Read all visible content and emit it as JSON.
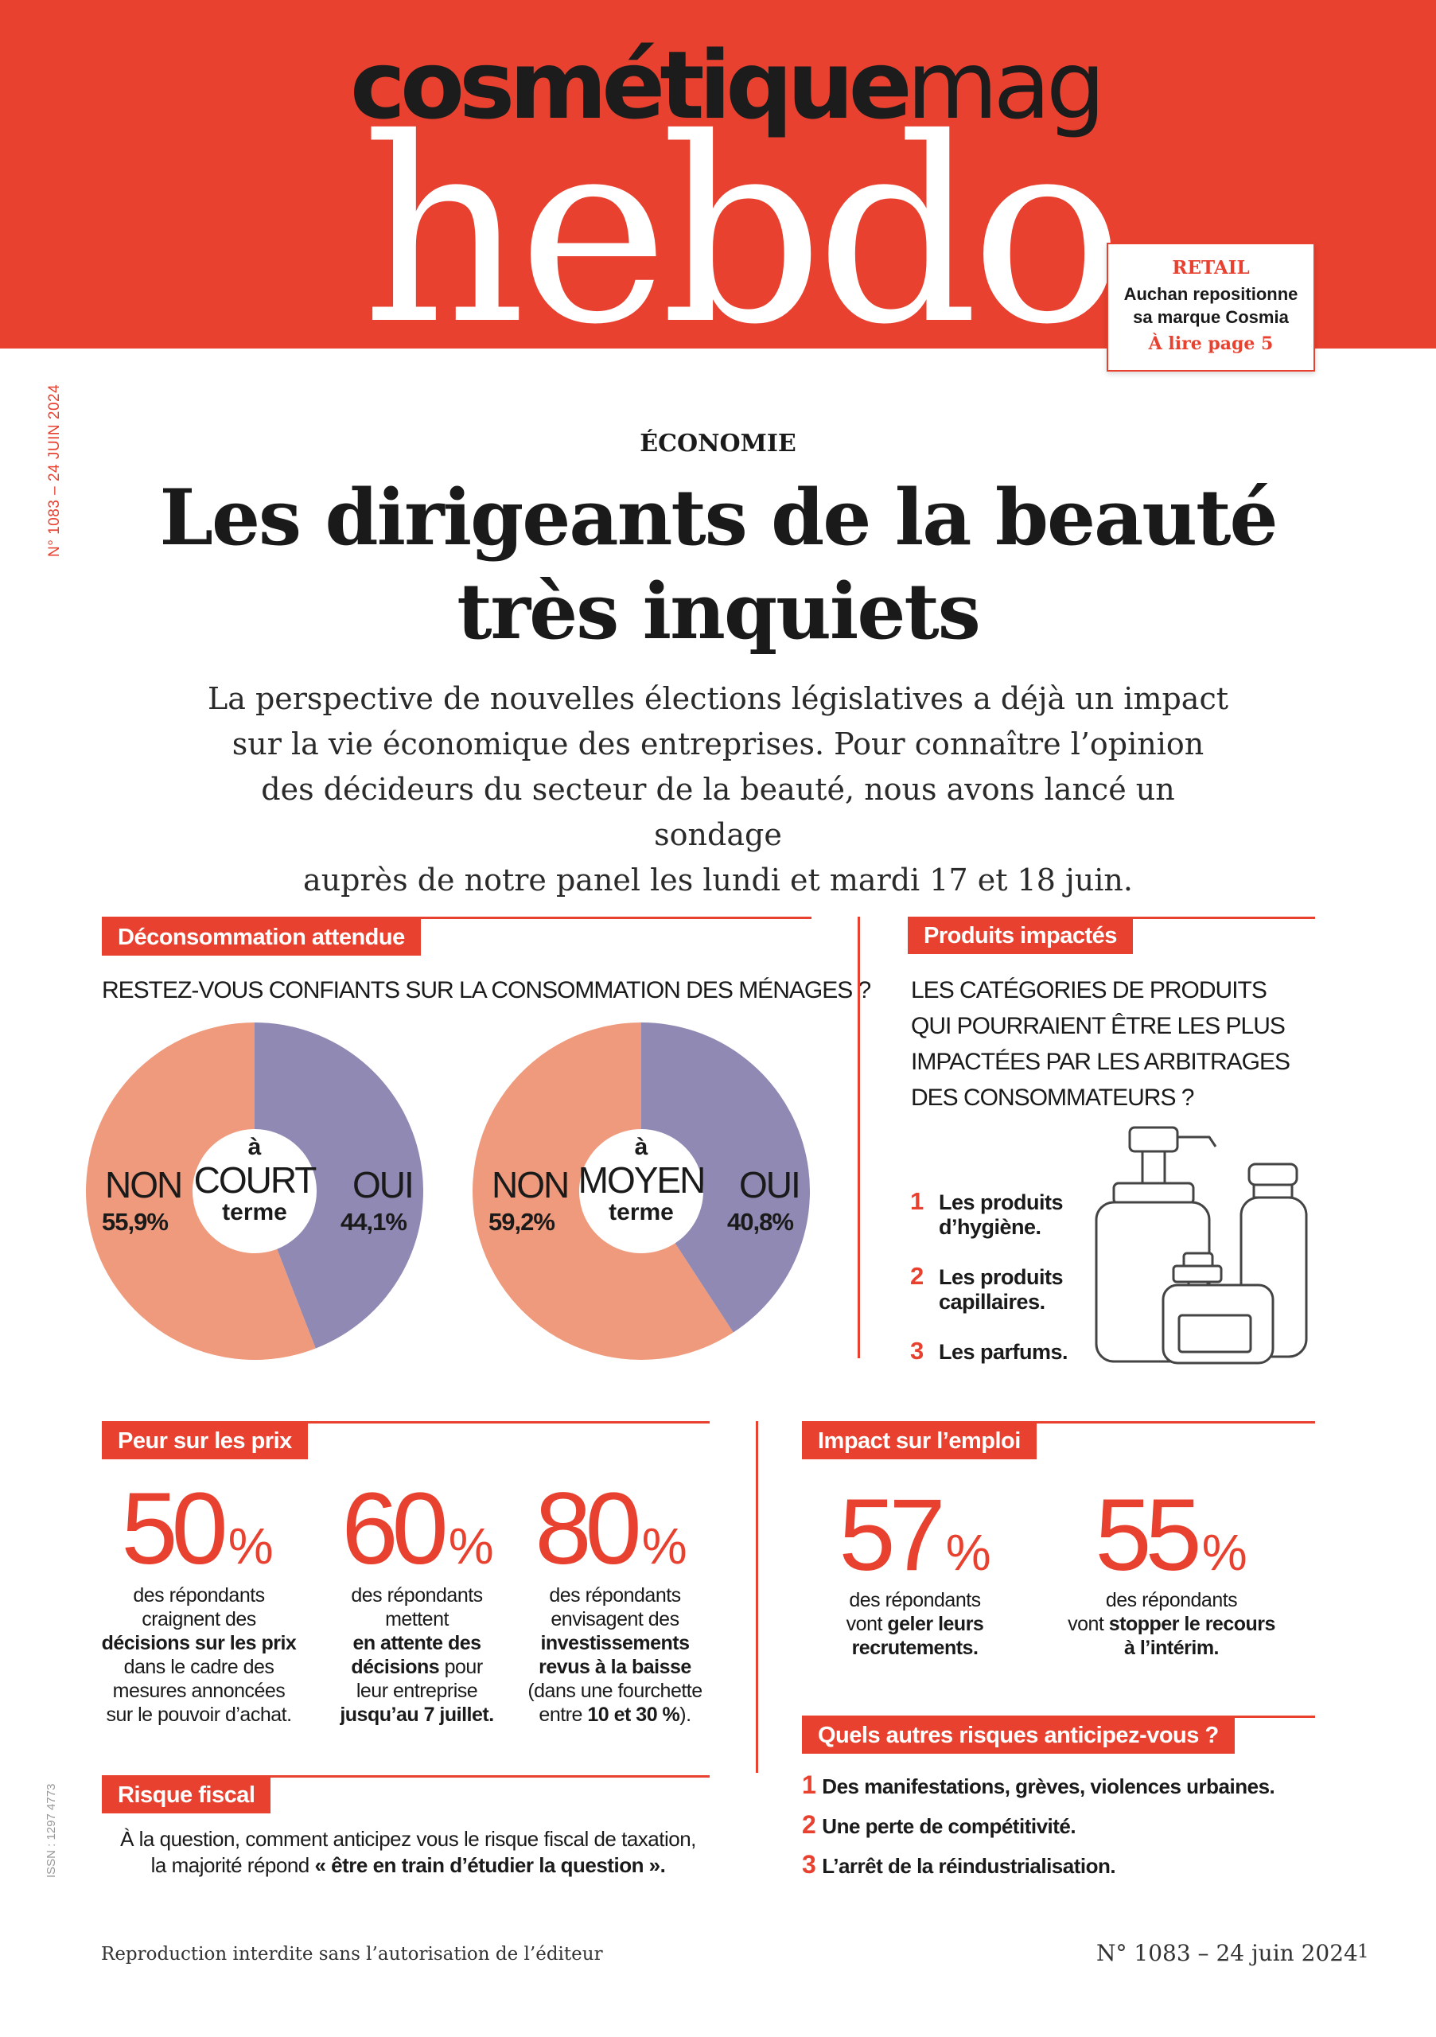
{
  "masthead": {
    "brand_bold": "cosmétique",
    "brand_light": "mag",
    "title": "hebdo"
  },
  "teaser": {
    "rubric": "RETAIL",
    "text_line1": "Auchan repositionne",
    "text_line2": "sa marque Cosmia",
    "link": "À lire page 5"
  },
  "side_note": "N° 1083 – 24 JUIN 2024",
  "issn": "ISSN : 1297 4773",
  "article": {
    "rubric": "ÉCONOMIE",
    "headline_line1": "Les dirigeants de la beauté",
    "headline_line2": "très inquiets",
    "chapo_line1": "La perspective de nouvelles élections législatives a déjà un impact",
    "chapo_line2": "sur la vie économique des entreprises. Pour connaître l’opinion",
    "chapo_line3": "des décideurs du secteur de la beauté, nous avons lancé un sondage",
    "chapo_line4": "auprès de notre panel les lundi et mardi 17 et 18 juin."
  },
  "deconsommation": {
    "label": "Déconsommation attendue",
    "question": "RESTEZ-VOUS CONFIANTS SUR LA CONSOMMATION DES MÉNAGES ?",
    "donuts": [
      {
        "a": "à",
        "horizon": "COURT",
        "term": "terme",
        "non_label": "NON",
        "non_value": "55,9%",
        "oui_label": "OUI",
        "oui_value": "44,1%",
        "non_pct": 55.9,
        "oui_pct": 44.1
      },
      {
        "a": "à",
        "horizon": "MOYEN",
        "term": "terme",
        "non_label": "NON",
        "non_value": "59,2%",
        "oui_label": "OUI",
        "oui_value": "40,8%",
        "non_pct": 59.2,
        "oui_pct": 40.8
      }
    ],
    "colors": {
      "non": "#ef9a7c",
      "oui": "#8f89b3"
    }
  },
  "produits": {
    "label": "Produits impactés",
    "question_line1": "LES CATÉGORIES DE PRODUITS",
    "question_line2": "QUI POURRAIENT ÊTRE LES PLUS",
    "question_line3": "IMPACTÉES PAR LES ARBITRAGES",
    "question_line4": "DES CONSOMMATEURS ?",
    "items": [
      {
        "num": "1",
        "line1": "Les produits",
        "line2": "d’hygiène."
      },
      {
        "num": "2",
        "line1": "Les produits",
        "line2": "capillaires."
      },
      {
        "num": "3",
        "line1": "Les parfums.",
        "line2": ""
      }
    ]
  },
  "prix": {
    "label": "Peur sur les prix",
    "stats": [
      {
        "value": "50",
        "unit": "%",
        "t1": "des répondants",
        "t2": "craignent des",
        "t3": "décisions sur les prix",
        "t4": "dans le cadre des",
        "t5": "mesures annoncées",
        "t6": "sur le pouvoir d’achat."
      },
      {
        "value": "60",
        "unit": "%",
        "t1": "des répondants",
        "t2": "mettent",
        "t3": "en attente des",
        "t4a": "décisions",
        "t4b": " pour",
        "t5": "leur entreprise",
        "t6": "jusqu’au 7 juillet."
      },
      {
        "value": "80",
        "unit": "%",
        "t1": "des répondants",
        "t2": "envisagent des",
        "t3": "investissements",
        "t4": "revus à la baisse",
        "t5": "(dans une fourchette",
        "t6a": "entre ",
        "t6b": "10 et 30 %",
        "t6c": ")."
      }
    ]
  },
  "emploi": {
    "label": "Impact sur l’emploi",
    "stats": [
      {
        "value": "57",
        "unit": "%",
        "t1": "des répondants",
        "t2a": "vont ",
        "t2b": "geler leurs",
        "t3": "recrutements."
      },
      {
        "value": "55",
        "unit": "%",
        "t1": "des répondants",
        "t2a": "vont ",
        "t2b": "stopper le recours",
        "t3": "à l’intérim."
      }
    ]
  },
  "fiscal": {
    "label": "Risque fiscal",
    "line1": "À la question, comment anticipez vous le risque fiscal de taxation,",
    "line2a": "la majorité répond ",
    "line2b": "« être en train d’étudier la question »."
  },
  "risques": {
    "label": "Quels autres risques anticipez-vous ?",
    "items": [
      {
        "num": "1",
        "text": "Des manifestations, grèves, violences urbaines."
      },
      {
        "num": "2",
        "text": "Une perte de compétitivité."
      },
      {
        "num": "3",
        "text": "L’arrêt de la réindustrialisation."
      }
    ]
  },
  "footer": {
    "left": "Reproduction interdite sans l’autorisation de l’éditeur",
    "issue": "N° 1083 – 24 juin 2024",
    "page": "1"
  }
}
